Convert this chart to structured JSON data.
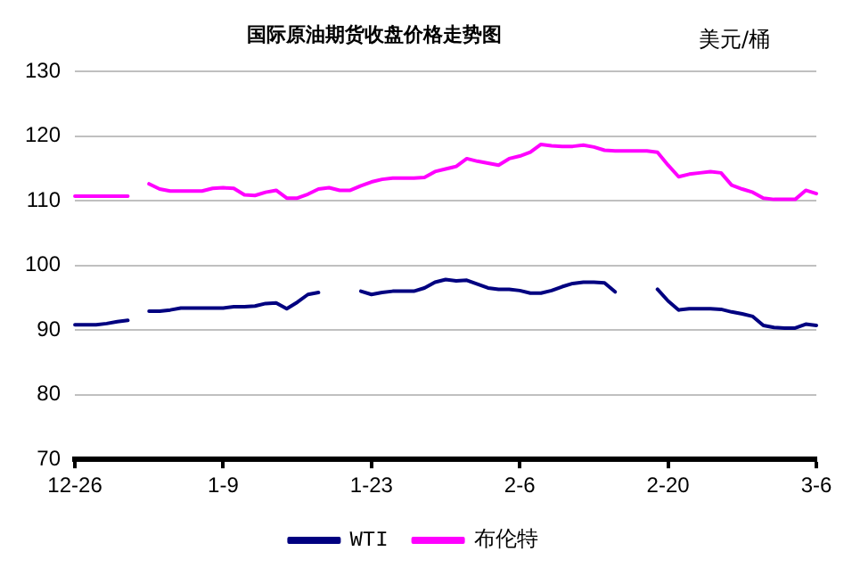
{
  "chart_data": {
    "type": "line",
    "title": "国际原油期货收盘价格走势图",
    "ylabel": "美元/桶",
    "categories": [
      "12-26",
      null,
      null,
      null,
      null,
      null,
      null,
      null,
      null,
      null,
      null,
      null,
      null,
      null,
      "1-9",
      null,
      null,
      null,
      null,
      null,
      null,
      null,
      null,
      null,
      null,
      null,
      null,
      null,
      "1-23",
      null,
      null,
      null,
      null,
      null,
      null,
      null,
      null,
      null,
      null,
      null,
      null,
      null,
      "2-6",
      null,
      null,
      null,
      null,
      null,
      null,
      null,
      null,
      null,
      null,
      null,
      null,
      null,
      "2-20",
      null,
      null,
      null,
      null,
      null,
      null,
      null,
      null,
      null,
      null,
      null,
      null,
      null,
      "3-6"
    ],
    "series": [
      {
        "name": "WTI",
        "color": "#000080",
        "values": [
          90.8,
          90.8,
          90.8,
          91,
          91.3,
          91.5,
          null,
          92.9,
          92.9,
          93.1,
          93.4,
          93.4,
          93.4,
          93.4,
          93.4,
          93.6,
          93.6,
          93.7,
          94.1,
          94.2,
          93.3,
          94.3,
          95.5,
          95.8,
          null,
          null,
          null,
          96,
          95.5,
          95.8,
          96,
          96,
          96,
          96.5,
          97.4,
          97.8,
          97.6,
          97.7,
          97.1,
          96.5,
          96.3,
          96.3,
          96.1,
          95.7,
          95.7,
          96.1,
          96.7,
          97.2,
          97.4,
          97.4,
          97.3,
          95.9,
          null,
          null,
          null,
          96.3,
          94.5,
          93.1,
          93.3,
          93.3,
          93.3,
          93.2,
          92.8,
          92.5,
          92.1,
          90.7,
          90.4,
          90.3,
          90.3,
          90.9,
          90.7
        ]
      },
      {
        "name": "布伦特",
        "color": "#ff00ff",
        "values": [
          110.7,
          110.7,
          110.7,
          110.7,
          110.7,
          110.7,
          null,
          112.6,
          111.8,
          111.5,
          111.5,
          111.5,
          111.5,
          111.9,
          112,
          111.9,
          110.9,
          110.8,
          111.3,
          111.6,
          110.4,
          110.4,
          111,
          111.8,
          112,
          111.6,
          111.6,
          112.3,
          112.9,
          113.3,
          113.5,
          113.5,
          113.5,
          113.6,
          114.5,
          114.9,
          115.3,
          116.5,
          116.1,
          115.8,
          115.5,
          116.5,
          116.9,
          117.5,
          118.7,
          118.5,
          118.4,
          118.4,
          118.6,
          118.3,
          117.8,
          117.7,
          117.7,
          117.7,
          117.7,
          117.5,
          115.5,
          113.7,
          114.1,
          114.3,
          114.5,
          114.3,
          112.4,
          111.8,
          111.3,
          110.4,
          110.2,
          110.2,
          110.2,
          111.6,
          111.1
        ]
      }
    ],
    "ylim": [
      70,
      130
    ],
    "yticks": [
      70,
      80,
      90,
      100,
      110,
      120,
      130
    ],
    "grid": "y",
    "legend": "bottom",
    "marker": "none",
    "line_style": "solid"
  }
}
